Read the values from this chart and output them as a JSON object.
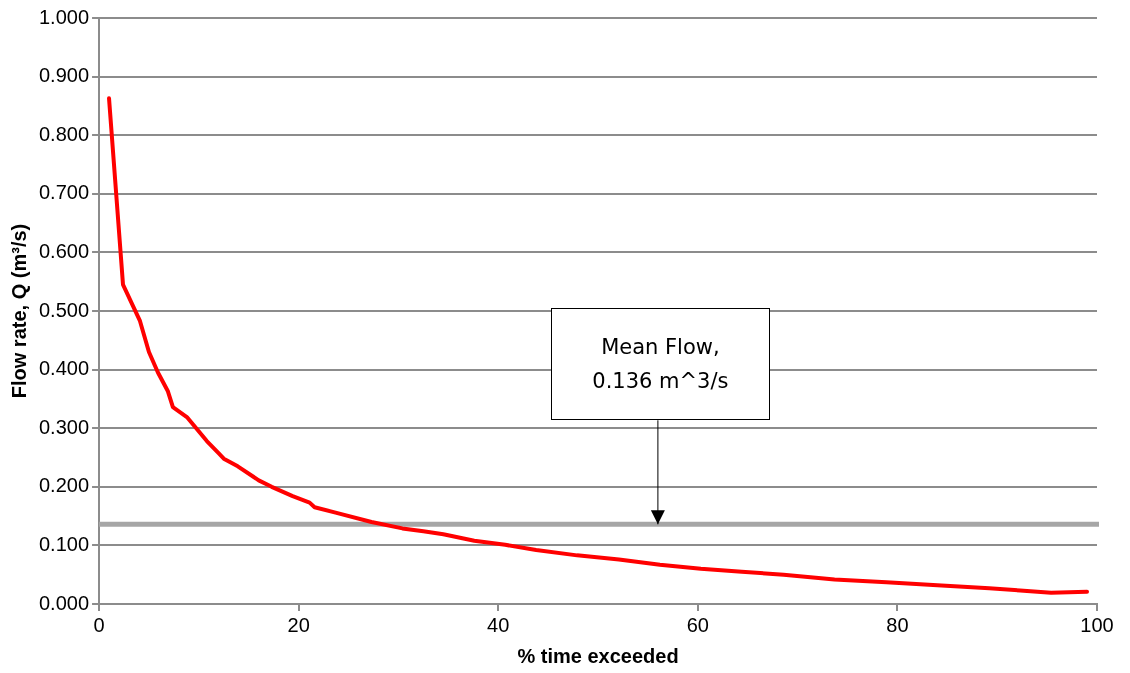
{
  "chart_data": {
    "type": "line",
    "xlabel": "% time exceeded",
    "ylabel": "Flow rate, Q (m³/s)",
    "x": [
      1.0,
      2.4,
      4.1,
      5.0,
      5.9,
      6.9,
      7.4,
      8.8,
      10.8,
      12.0,
      12.5,
      13.9,
      16.0,
      17.3,
      19.4,
      21.1,
      21.6,
      23.7,
      27.3,
      30.4,
      32.5,
      34.5,
      37.6,
      40.7,
      43.8,
      47.9,
      52.1,
      56.2,
      60.3,
      64.4,
      68.6,
      73.7,
      78.9,
      84.0,
      89.2,
      92.3,
      95.4,
      99.0
    ],
    "series": [
      {
        "color": "#ff0000",
        "values": [
          0.863,
          0.545,
          0.483,
          0.43,
          0.395,
          0.363,
          0.336,
          0.319,
          0.278,
          0.257,
          0.248,
          0.235,
          0.211,
          0.2,
          0.184,
          0.173,
          0.165,
          0.156,
          0.14,
          0.129,
          0.124,
          0.119,
          0.108,
          0.101,
          0.092,
          0.083,
          0.076,
          0.067,
          0.06,
          0.055,
          0.05,
          0.042,
          0.037,
          0.032,
          0.027,
          0.023,
          0.019,
          0.021
        ]
      }
    ],
    "xlim": [
      0,
      100
    ],
    "xticks": [
      0,
      20,
      40,
      60,
      80,
      100
    ],
    "ylim": [
      0,
      1
    ],
    "yticks": [
      {
        "value": 0,
        "label": "0.000"
      },
      {
        "value": 0.1,
        "label": "0.100"
      },
      {
        "value": 0.2,
        "label": "0.200"
      },
      {
        "value": 0.3,
        "label": "0.300"
      },
      {
        "value": 0.4,
        "label": "0.400"
      },
      {
        "value": 0.5,
        "label": "0.500"
      },
      {
        "value": 0.6,
        "label": "0.600"
      },
      {
        "value": 0.7,
        "label": "0.700"
      },
      {
        "value": 0.8,
        "label": "0.800"
      },
      {
        "value": 0.9,
        "label": "0.900"
      },
      {
        "value": 1,
        "label": "1.000"
      }
    ],
    "grid": "y",
    "legend": false,
    "marker": "none",
    "line_style": "solid",
    "ref_lines": [
      {
        "axis": "y",
        "value": 0.136,
        "color": "#a6a6a6"
      }
    ],
    "annotations": [
      {
        "text": "Mean Flow,\n0.136 m^3/s",
        "x": 56,
        "y": 0.136
      }
    ]
  }
}
